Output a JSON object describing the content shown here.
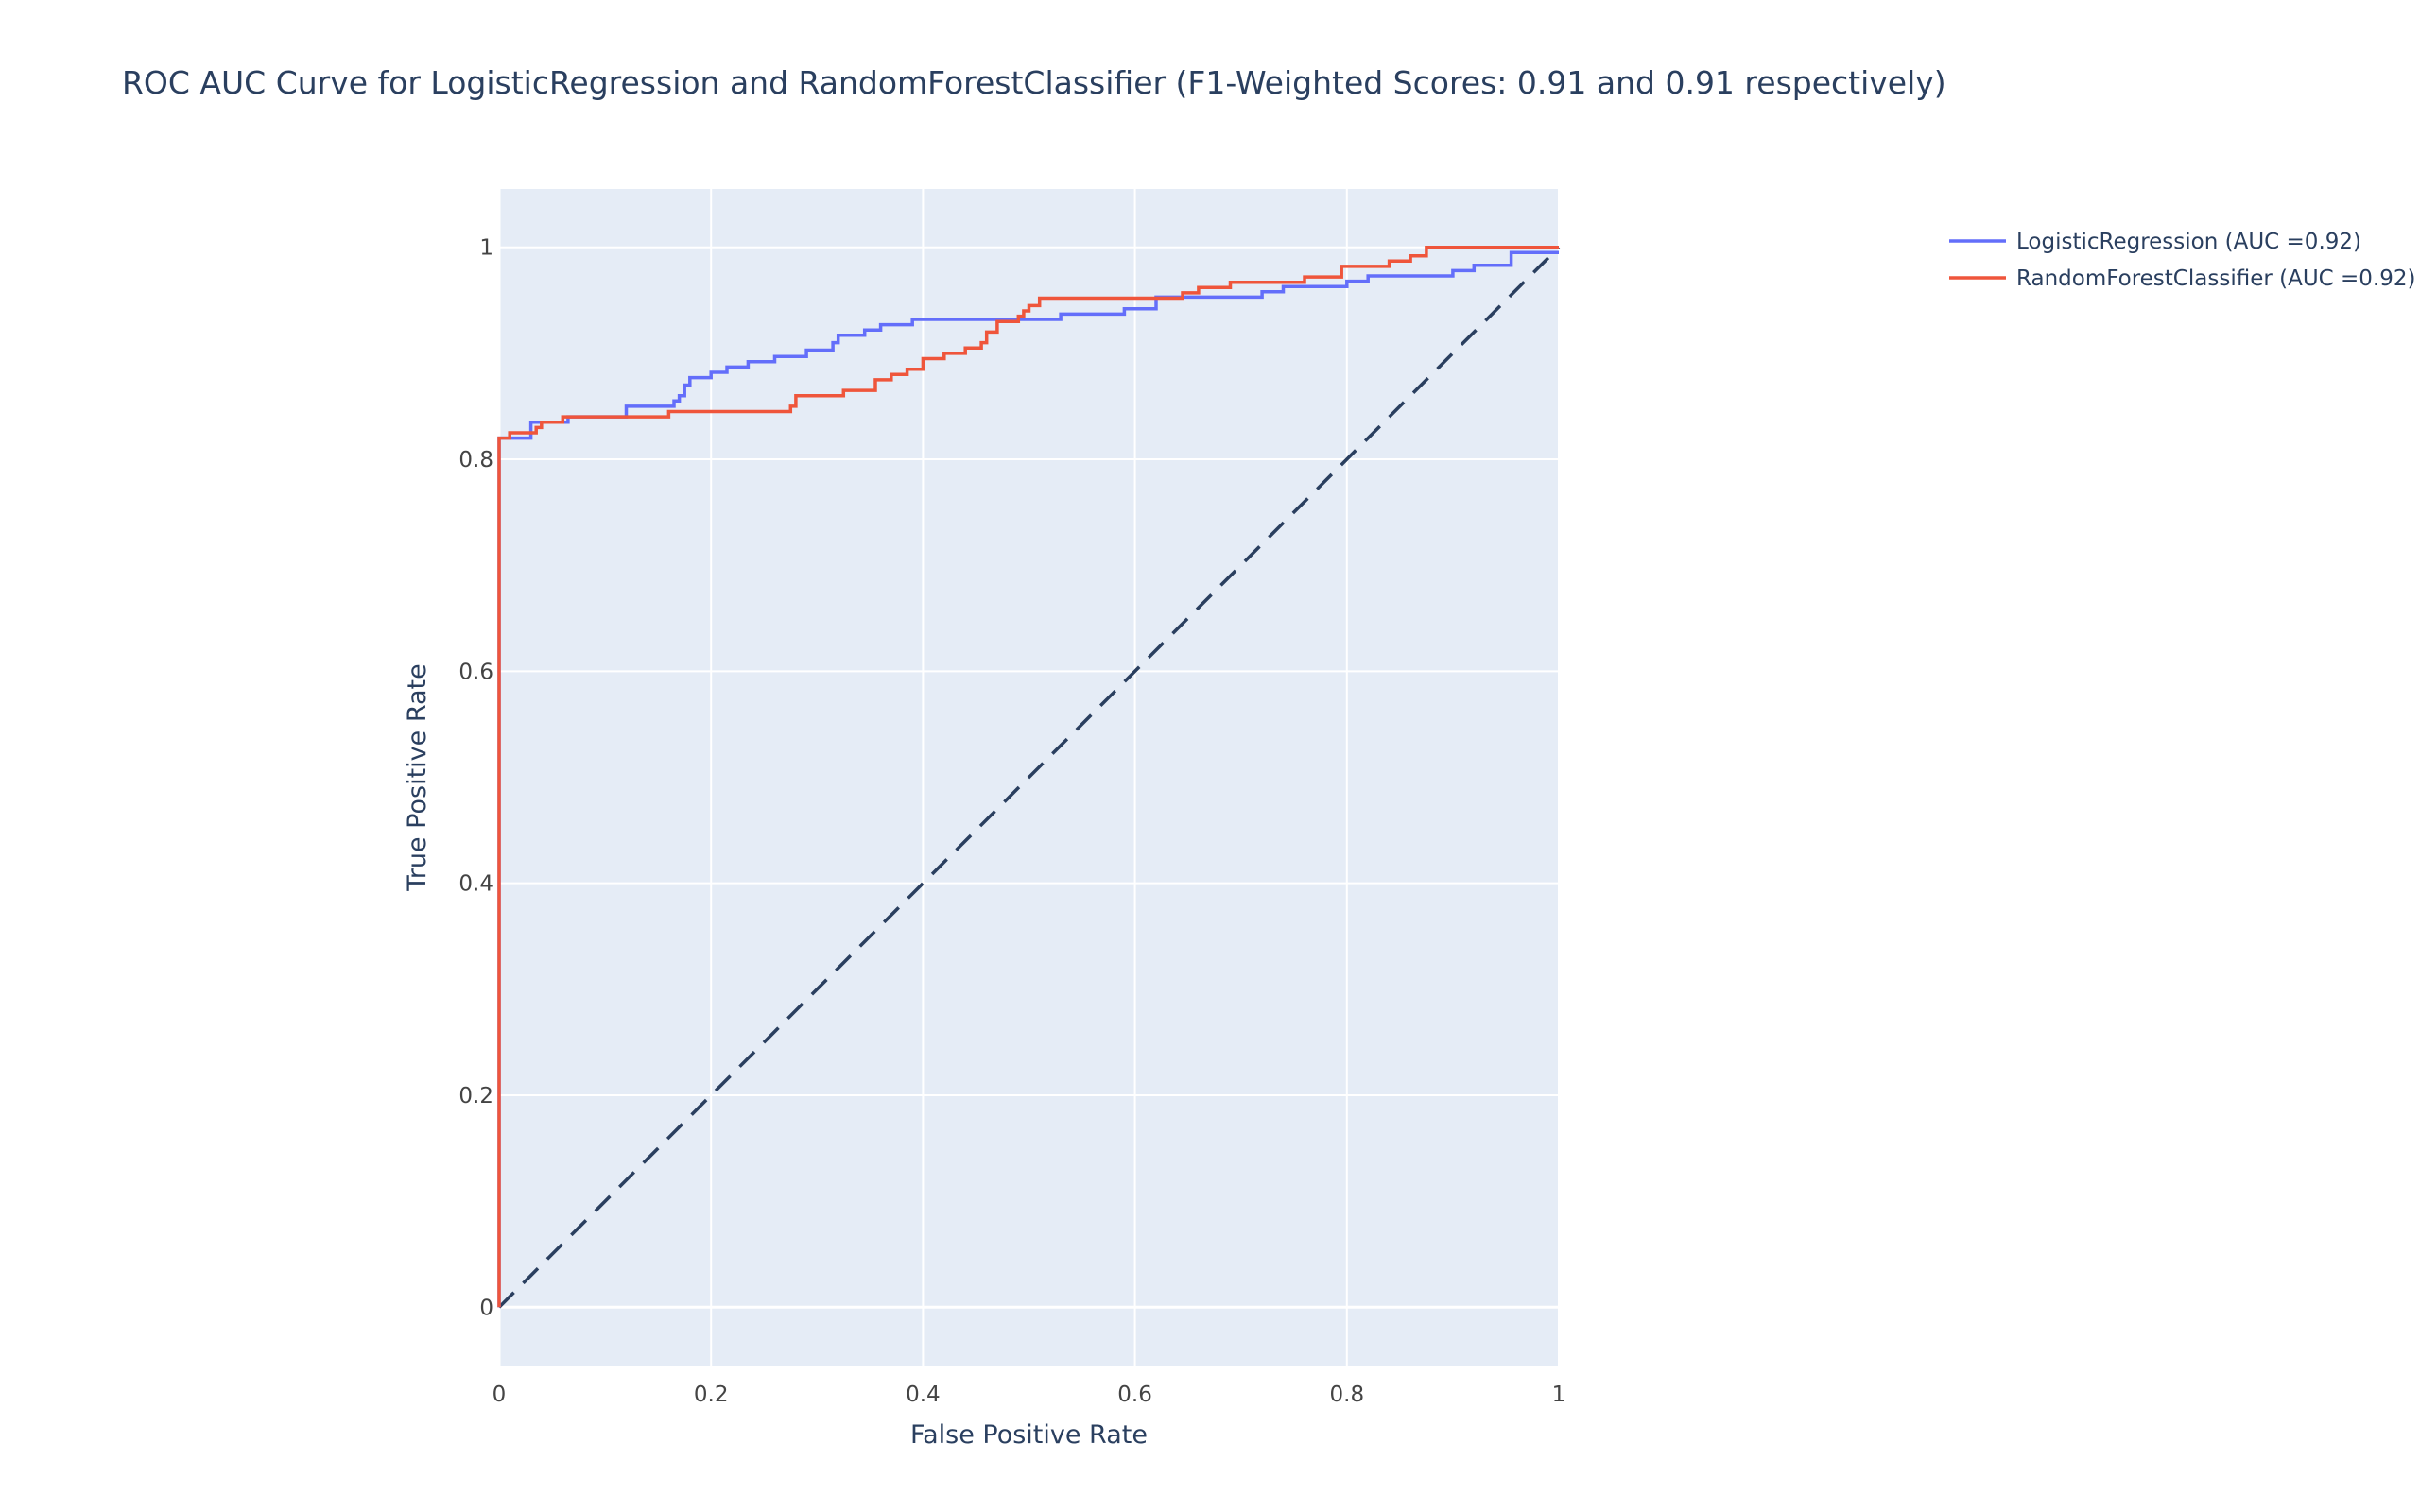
{
  "chart_data": {
    "type": "line",
    "title": "ROC AUC Curve for LogisticRegression and RandomForestClassifier (F1-Weighted Scores: 0.91 and 0.91 respectively)",
    "xlabel": "False Positive Rate",
    "ylabel": "True Positive Rate",
    "xlim": [
      0,
      1
    ],
    "ylim": [
      -0.055,
      1.055
    ],
    "x_ticks": [
      0,
      0.2,
      0.4,
      0.6,
      0.8,
      1
    ],
    "x_tick_labels": [
      "0",
      "0.2",
      "0.4",
      "0.6",
      "0.8",
      "1"
    ],
    "y_ticks": [
      0,
      0.2,
      0.4,
      0.6,
      0.8,
      1
    ],
    "y_tick_labels": [
      "0",
      "0.2",
      "0.4",
      "0.6",
      "0.8",
      "1"
    ],
    "grid": true,
    "legend_position": "top-right",
    "colors": {
      "plot_bg": "#e5ecf6",
      "grid": "#ffffff",
      "baseline": "#2a3f5f"
    },
    "series": [
      {
        "name": "LogisticRegression (AUC =0.92)",
        "color": "#636efa",
        "x": [
          0,
          0,
          0.03,
          0.03,
          0.065,
          0.065,
          0.12,
          0.12,
          0.165,
          0.165,
          0.17,
          0.17,
          0.175,
          0.175,
          0.18,
          0.18,
          0.2,
          0.2,
          0.215,
          0.215,
          0.235,
          0.235,
          0.26,
          0.26,
          0.29,
          0.29,
          0.315,
          0.315,
          0.32,
          0.32,
          0.345,
          0.345,
          0.36,
          0.36,
          0.39,
          0.39,
          0.53,
          0.53,
          0.59,
          0.59,
          0.62,
          0.62,
          0.72,
          0.72,
          0.74,
          0.74,
          0.8,
          0.8,
          0.82,
          0.82,
          0.9,
          0.9,
          0.92,
          0.92,
          0.955,
          0.955,
          1
        ],
        "y": [
          0,
          0.82,
          0.82,
          0.835,
          0.835,
          0.84,
          0.84,
          0.85,
          0.85,
          0.855,
          0.855,
          0.86,
          0.86,
          0.87,
          0.87,
          0.877,
          0.877,
          0.882,
          0.882,
          0.887,
          0.887,
          0.892,
          0.892,
          0.897,
          0.897,
          0.903,
          0.903,
          0.91,
          0.91,
          0.917,
          0.917,
          0.922,
          0.922,
          0.927,
          0.927,
          0.932,
          0.932,
          0.937,
          0.937,
          0.942,
          0.942,
          0.953,
          0.953,
          0.958,
          0.958,
          0.963,
          0.963,
          0.968,
          0.968,
          0.973,
          0.973,
          0.978,
          0.978,
          0.983,
          0.983,
          0.995,
          0.995
        ]
      },
      {
        "name": "RandomForestClassifier (AUC =0.92)",
        "color": "#ef553b",
        "x": [
          0,
          0,
          0.01,
          0.01,
          0.035,
          0.035,
          0.04,
          0.04,
          0.06,
          0.06,
          0.16,
          0.16,
          0.275,
          0.275,
          0.28,
          0.28,
          0.325,
          0.325,
          0.355,
          0.355,
          0.37,
          0.37,
          0.385,
          0.385,
          0.4,
          0.4,
          0.42,
          0.42,
          0.44,
          0.44,
          0.455,
          0.455,
          0.46,
          0.46,
          0.47,
          0.47,
          0.49,
          0.49,
          0.495,
          0.495,
          0.5,
          0.5,
          0.51,
          0.51,
          0.645,
          0.645,
          0.66,
          0.66,
          0.69,
          0.69,
          0.76,
          0.76,
          0.795,
          0.795,
          0.84,
          0.84,
          0.86,
          0.86,
          0.875,
          0.875,
          1
        ],
        "y": [
          0,
          0.82,
          0.82,
          0.825,
          0.825,
          0.83,
          0.83,
          0.835,
          0.835,
          0.84,
          0.84,
          0.845,
          0.845,
          0.85,
          0.85,
          0.86,
          0.86,
          0.865,
          0.865,
          0.875,
          0.875,
          0.88,
          0.88,
          0.885,
          0.885,
          0.895,
          0.895,
          0.9,
          0.9,
          0.905,
          0.905,
          0.91,
          0.91,
          0.92,
          0.92,
          0.93,
          0.93,
          0.935,
          0.935,
          0.94,
          0.94,
          0.945,
          0.945,
          0.952,
          0.952,
          0.957,
          0.957,
          0.962,
          0.962,
          0.967,
          0.967,
          0.972,
          0.972,
          0.982,
          0.982,
          0.987,
          0.987,
          0.992,
          0.992,
          1.0,
          1.0
        ]
      }
    ],
    "reference_line": {
      "style": "dashed",
      "x": [
        0,
        1
      ],
      "y": [
        0,
        1
      ]
    }
  }
}
